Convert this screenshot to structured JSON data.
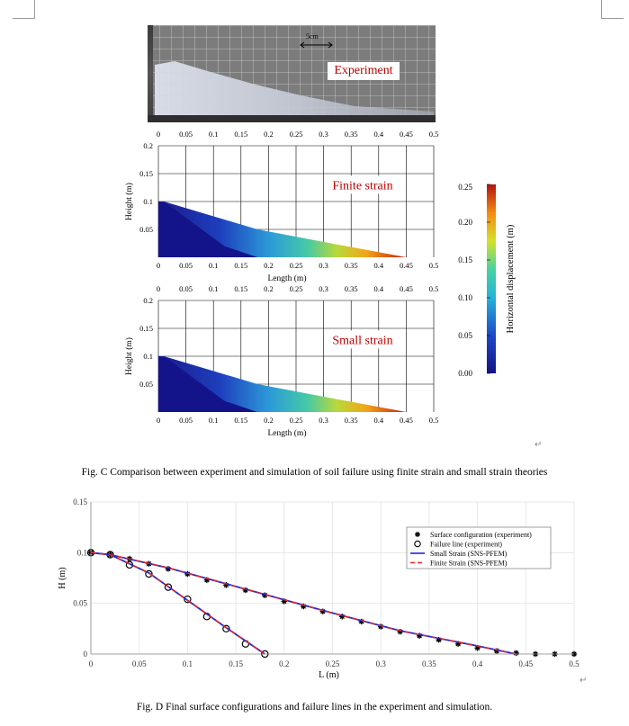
{
  "photo": {
    "scale_label": "5cm",
    "label": "Experiment"
  },
  "panel_finite": {
    "label": "Finite strain",
    "x_ticks": [
      "0",
      "0.05",
      "0.1",
      "0.15",
      "0.2",
      "0.25",
      "0.3",
      "0.35",
      "0.4",
      "0.45",
      "0.5"
    ],
    "y_ticks": [
      "0.2",
      "0.15",
      "0.1",
      "0.05"
    ],
    "xlabel": "Length (m)",
    "ylabel": "Height (m)"
  },
  "panel_small": {
    "label": "Small strain",
    "x_ticks": [
      "0",
      "0.05",
      "0.1",
      "0.15",
      "0.2",
      "0.25",
      "0.3",
      "0.35",
      "0.4",
      "0.45",
      "0.5"
    ],
    "y_ticks": [
      "0.2",
      "0.15",
      "0.1",
      "0.05"
    ],
    "xlabel": "Length (m)",
    "ylabel": "Height (m)"
  },
  "colorbar": {
    "ticks": [
      "0.25",
      "0.20",
      "0.15",
      "0.10",
      "0.05",
      "0.00"
    ],
    "label": "Horizontal displacement (m)"
  },
  "captions": {
    "fig_c": "Fig. C Comparison between experiment and simulation of soil failure using finite strain and small strain theories",
    "fig_d": "Fig. D Final surface configurations and failure lines in the experiment and simulation."
  },
  "chart_data": {
    "type": "line",
    "xlabel": "L (m)",
    "ylabel": "H (m)",
    "xlim": [
      0,
      0.5
    ],
    "ylim": [
      0,
      0.15
    ],
    "x_ticks": [
      "0",
      "0.05",
      "0.1",
      "0.15",
      "0.2",
      "0.25",
      "0.3",
      "0.35",
      "0.4",
      "0.45",
      "0.5"
    ],
    "y_ticks": [
      "0",
      "0.05",
      "0.1",
      "0.15"
    ],
    "grid": true,
    "legend_position": "top-right",
    "series": [
      {
        "name": "Surface configuration (experiment)",
        "kind": "marker-star",
        "color": "#000000",
        "x": [
          0.0,
          0.02,
          0.04,
          0.06,
          0.08,
          0.1,
          0.12,
          0.14,
          0.16,
          0.18,
          0.2,
          0.22,
          0.24,
          0.26,
          0.28,
          0.3,
          0.32,
          0.34,
          0.36,
          0.38,
          0.4,
          0.42,
          0.44,
          0.46,
          0.48,
          0.5
        ],
        "y": [
          0.1,
          0.098,
          0.094,
          0.089,
          0.084,
          0.079,
          0.073,
          0.068,
          0.063,
          0.058,
          0.052,
          0.047,
          0.042,
          0.037,
          0.032,
          0.027,
          0.022,
          0.018,
          0.014,
          0.01,
          0.006,
          0.003,
          0.001,
          0.0,
          0.0,
          0.0
        ]
      },
      {
        "name": "Failure line (experiment)",
        "kind": "marker-circle",
        "color": "#000000",
        "x": [
          0.0,
          0.02,
          0.04,
          0.06,
          0.08,
          0.1,
          0.12,
          0.14,
          0.16,
          0.18
        ],
        "y": [
          0.1,
          0.098,
          0.088,
          0.079,
          0.066,
          0.054,
          0.037,
          0.025,
          0.01,
          0.0
        ]
      },
      {
        "name": "Small Strain (SNS-PFEM)",
        "kind": "line-solid",
        "color": "#1f2bd6",
        "x": [
          0.0,
          0.02,
          0.08,
          0.16,
          0.24,
          0.32,
          0.4,
          0.44
        ],
        "y": [
          0.1,
          0.098,
          0.085,
          0.064,
          0.043,
          0.023,
          0.008,
          0.0
        ]
      },
      {
        "name": "Finite Strain (SNS-PFEM)",
        "kind": "line-dashed",
        "color": "#e8231c",
        "x": [
          0.0,
          0.02,
          0.08,
          0.16,
          0.24,
          0.32,
          0.4,
          0.44
        ],
        "y": [
          0.1,
          0.098,
          0.085,
          0.064,
          0.043,
          0.023,
          0.008,
          0.0
        ]
      },
      {
        "name": "Small Strain failure line",
        "kind": "line-solid-nolegend",
        "color": "#1f2bd6",
        "x": [
          0.0,
          0.02,
          0.06,
          0.1,
          0.14,
          0.18
        ],
        "y": [
          0.1,
          0.098,
          0.08,
          0.053,
          0.026,
          0.0
        ]
      },
      {
        "name": "Finite Strain failure line",
        "kind": "line-dashed-nolegend",
        "color": "#e8231c",
        "x": [
          0.0,
          0.02,
          0.06,
          0.1,
          0.14,
          0.18
        ],
        "y": [
          0.1,
          0.098,
          0.08,
          0.053,
          0.026,
          0.0
        ]
      }
    ]
  }
}
